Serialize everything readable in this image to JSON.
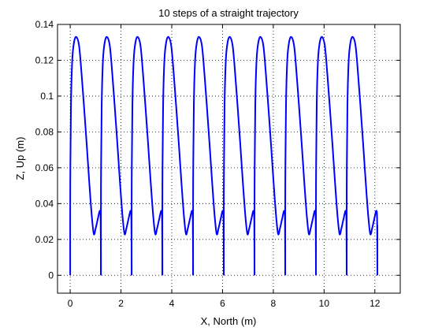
{
  "chart_data": {
    "type": "line",
    "title": "10 steps of a straight trajectory",
    "xlabel": "X, North (m)",
    "ylabel": "Z, Up (m)",
    "xlim": [
      -0.5,
      13
    ],
    "ylim": [
      -0.01,
      0.14
    ],
    "xticks": [
      0,
      2,
      4,
      6,
      8,
      10,
      12
    ],
    "yticks": [
      0,
      0.02,
      0.04,
      0.06,
      0.08,
      0.1,
      0.12,
      0.14
    ],
    "xtick_labels": [
      "0",
      "2",
      "4",
      "6",
      "8",
      "10",
      "12"
    ],
    "ytick_labels": [
      "0",
      "0.02",
      "0.04",
      "0.06",
      "0.08",
      "0.1",
      "0.12",
      "0.14"
    ],
    "grid": true,
    "line_color": "#0000ff",
    "series": [
      {
        "start_x": [
          0.0,
          1.21,
          2.42,
          3.63,
          4.84,
          6.05,
          7.26,
          8.47,
          9.68,
          10.89
        ],
        "peak_height": 0.133,
        "peak_offset": 0.24,
        "valley_height": 0.023,
        "valley_offset": 0.93,
        "bump_height": 0.036,
        "bump_offset": 1.17,
        "step_length": 1.21,
        "final_x": 12.1,
        "final_tip": 0.028
      }
    ]
  }
}
